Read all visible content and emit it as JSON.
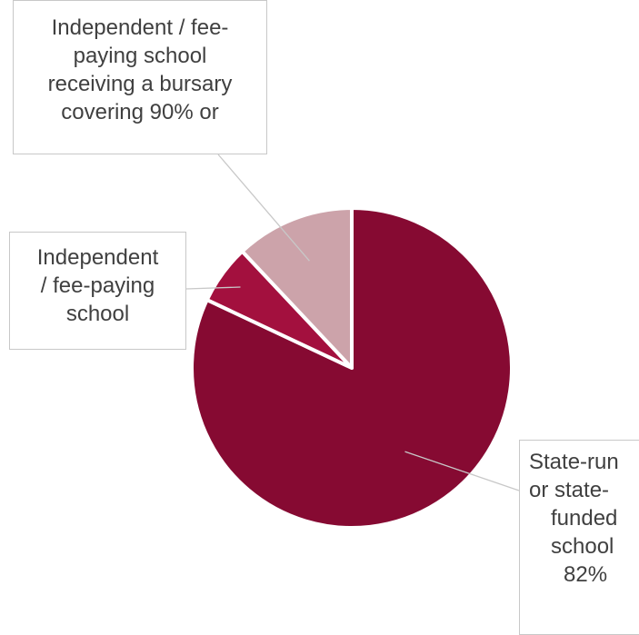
{
  "chart_data": {
    "type": "pie",
    "slices": [
      {
        "category": "State-run or state-funded school",
        "value": 82,
        "label_lines": [
          "State-run",
          "or state-",
          "funded",
          "school",
          "82%"
        ],
        "color": "#860a32"
      },
      {
        "category": "Independent / fee-paying school",
        "value": 6,
        "label_lines": [
          "Independent",
          "/ fee-paying",
          "school"
        ],
        "color": "#a3103e"
      },
      {
        "category": "Independent / fee-paying school receiving a bursary covering 90% or",
        "value": 12,
        "label_lines": [
          "Independent / fee-",
          "paying school",
          "receiving a bursary",
          "covering 90% or"
        ],
        "color": "#cca3aa"
      }
    ],
    "legend": "none",
    "start_angle": "12 o'clock",
    "direction": "clockwise"
  }
}
